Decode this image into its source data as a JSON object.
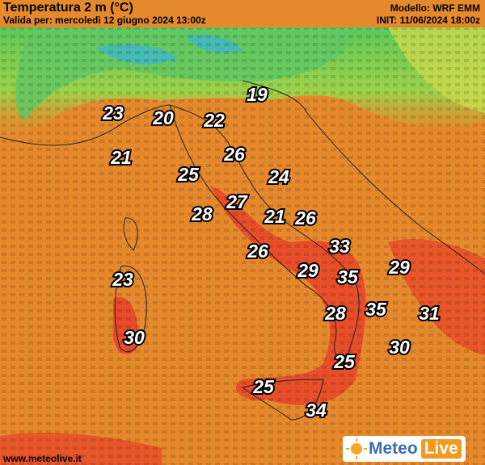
{
  "header": {
    "title": "Temperatura 2 m (°C)",
    "valid": "Valida per: mercoledì 12 giugno 2024 13:00z",
    "model": "Modello: WRF EMM",
    "init": "INIT: 11/06/2024 18:00z"
  },
  "labels": [
    19,
    23,
    20,
    22,
    26,
    21,
    25,
    24,
    27,
    28,
    21,
    26,
    33,
    26,
    29,
    35,
    29,
    23,
    28,
    35,
    31,
    30,
    30,
    25,
    25,
    34
  ],
  "footer": {
    "site": "www.meteolive.it",
    "logo_left": "Meteo",
    "logo_right": "Live"
  }
}
